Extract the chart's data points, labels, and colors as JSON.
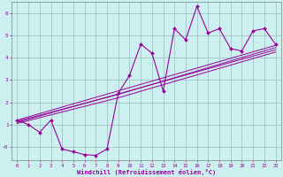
{
  "xlabel": "Windchill (Refroidissement éolien,°C)",
  "bg_color": "#ccf0f0",
  "line_color": "#990099",
  "grid_color": "#99bbbb",
  "xlim": [
    -0.5,
    23.5
  ],
  "ylim": [
    -0.6,
    6.5
  ],
  "xticks": [
    0,
    1,
    2,
    3,
    4,
    5,
    6,
    7,
    8,
    9,
    10,
    11,
    12,
    13,
    14,
    15,
    16,
    17,
    18,
    19,
    20,
    21,
    22,
    23
  ],
  "yticks": [
    0,
    1,
    2,
    3,
    4,
    5,
    6
  ],
  "ytick_labels": [
    "-0",
    "1",
    "2",
    "3",
    "4",
    "5",
    "6"
  ],
  "data_x": [
    0,
    1,
    2,
    3,
    4,
    5,
    6,
    7,
    8,
    9,
    10,
    11,
    12,
    13,
    14,
    15,
    16,
    17,
    18,
    19,
    20,
    21,
    22,
    23
  ],
  "data_y": [
    1.2,
    1.0,
    0.65,
    1.2,
    -0.1,
    -0.22,
    -0.35,
    -0.38,
    -0.1,
    2.4,
    3.2,
    4.6,
    4.2,
    2.5,
    5.3,
    4.8,
    6.3,
    5.1,
    5.3,
    4.4,
    4.3,
    5.2,
    5.3,
    4.6
  ],
  "trend1_x": [
    0,
    23
  ],
  "trend1_y": [
    1.2,
    4.55
  ],
  "trend2_x": [
    0,
    23
  ],
  "trend2_y": [
    1.1,
    4.35
  ],
  "trend3_x": [
    0,
    9,
    23
  ],
  "trend3_y": [
    1.15,
    2.35,
    4.45
  ],
  "trend4_x": [
    0,
    9,
    23
  ],
  "trend4_y": [
    1.05,
    2.2,
    4.25
  ]
}
